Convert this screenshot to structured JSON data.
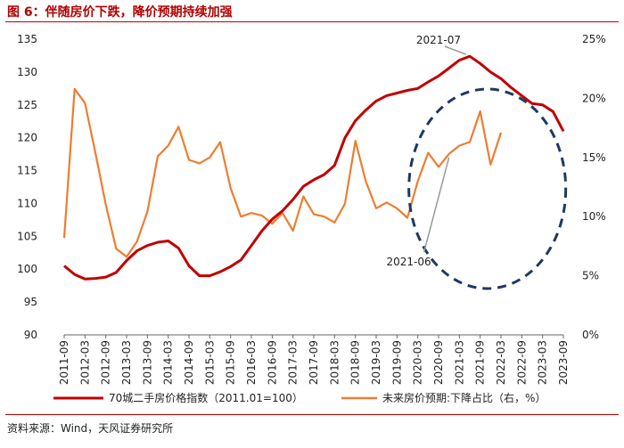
{
  "header": {
    "title": "图 6：伴随房价下跌，降价预期持续加强"
  },
  "footer": {
    "source": "资料来源：Wind，天风证券研究所"
  },
  "chart_data": {
    "type": "line",
    "title": "图 6：伴随房价下跌，降价预期持续加强",
    "x_ticks": [
      "2011-09",
      "2012-03",
      "2012-09",
      "2013-03",
      "2013-09",
      "2014-03",
      "2014-09",
      "2015-03",
      "2015-09",
      "2016-03",
      "2016-09",
      "2017-03",
      "2017-09",
      "2018-03",
      "2018-09",
      "2019-03",
      "2019-09",
      "2020-03",
      "2020-09",
      "2021-03",
      "2021-09",
      "2022-03",
      "2022-09",
      "2023-03",
      "2023-09"
    ],
    "y_left": {
      "ylim": [
        90,
        135
      ],
      "ticks": [
        "90",
        "95",
        "100",
        "105",
        "110",
        "115",
        "120",
        "125",
        "130",
        "135"
      ]
    },
    "y_right": {
      "ylim": [
        0,
        25
      ],
      "ticks": [
        "0%",
        "5%",
        "10%",
        "15%",
        "20%",
        "25%"
      ]
    },
    "legend_position": "bottom",
    "grid": false,
    "series": [
      {
        "name": "70城二手房价格指数（2011.01=100）",
        "axis": "left",
        "color": "#c00000",
        "points": [
          [
            "2011-09",
            100.5
          ],
          [
            "2011-12",
            99.2
          ],
          [
            "2012-03",
            98.5
          ],
          [
            "2012-06",
            98.6
          ],
          [
            "2012-09",
            98.8
          ],
          [
            "2012-12",
            99.5
          ],
          [
            "2013-03",
            101.3
          ],
          [
            "2013-06",
            102.8
          ],
          [
            "2013-09",
            103.6
          ],
          [
            "2013-12",
            104.1
          ],
          [
            "2014-03",
            104.3
          ],
          [
            "2014-06",
            103.2
          ],
          [
            "2014-09",
            100.5
          ],
          [
            "2014-12",
            99.0
          ],
          [
            "2015-03",
            99.0
          ],
          [
            "2015-06",
            99.6
          ],
          [
            "2015-09",
            100.4
          ],
          [
            "2015-12",
            101.4
          ],
          [
            "2016-03",
            103.6
          ],
          [
            "2016-06",
            105.8
          ],
          [
            "2016-09",
            107.6
          ],
          [
            "2016-12",
            108.9
          ],
          [
            "2017-03",
            110.6
          ],
          [
            "2017-06",
            112.6
          ],
          [
            "2017-09",
            113.6
          ],
          [
            "2017-12",
            114.4
          ],
          [
            "2018-03",
            115.8
          ],
          [
            "2018-06",
            120.0
          ],
          [
            "2018-09",
            122.6
          ],
          [
            "2018-12",
            124.2
          ],
          [
            "2019-03",
            125.6
          ],
          [
            "2019-06",
            126.4
          ],
          [
            "2019-09",
            126.8
          ],
          [
            "2019-12",
            127.2
          ],
          [
            "2020-03",
            127.5
          ],
          [
            "2020-06",
            128.5
          ],
          [
            "2020-09",
            129.4
          ],
          [
            "2020-12",
            130.6
          ],
          [
            "2021-03",
            131.8
          ],
          [
            "2021-06",
            132.4
          ],
          [
            "2021-09",
            131.3
          ],
          [
            "2021-12",
            130.0
          ],
          [
            "2022-03",
            129.0
          ],
          [
            "2022-06",
            127.6
          ],
          [
            "2022-09",
            126.4
          ],
          [
            "2022-12",
            125.2
          ],
          [
            "2023-03",
            125.0
          ],
          [
            "2023-06",
            124.0
          ],
          [
            "2023-09",
            121.0
          ]
        ]
      },
      {
        "name": "未来房价预期:下降占比（右，%）",
        "axis": "right",
        "color": "#ed7d31",
        "points": [
          [
            "2011-09",
            8.2
          ],
          [
            "2011-12",
            20.8
          ],
          [
            "2012-03",
            19.6
          ],
          [
            "2012-06",
            15.4
          ],
          [
            "2012-09",
            11.0
          ],
          [
            "2012-12",
            7.3
          ],
          [
            "2013-03",
            6.6
          ],
          [
            "2013-06",
            7.9
          ],
          [
            "2013-09",
            10.4
          ],
          [
            "2013-12",
            15.1
          ],
          [
            "2014-03",
            16.0
          ],
          [
            "2014-06",
            17.6
          ],
          [
            "2014-09",
            14.8
          ],
          [
            "2014-12",
            14.5
          ],
          [
            "2015-03",
            15.0
          ],
          [
            "2015-06",
            16.3
          ],
          [
            "2015-09",
            12.4
          ],
          [
            "2015-12",
            10.0
          ],
          [
            "2016-03",
            10.3
          ],
          [
            "2016-06",
            10.1
          ],
          [
            "2016-09",
            9.4
          ],
          [
            "2016-12",
            10.3
          ],
          [
            "2017-03",
            8.8
          ],
          [
            "2017-06",
            11.7
          ],
          [
            "2017-09",
            10.2
          ],
          [
            "2017-12",
            10.0
          ],
          [
            "2018-03",
            9.5
          ],
          [
            "2018-06",
            11.1
          ],
          [
            "2018-09",
            16.4
          ],
          [
            "2018-12",
            13.0
          ],
          [
            "2019-03",
            10.7
          ],
          [
            "2019-06",
            11.2
          ],
          [
            "2019-09",
            10.7
          ],
          [
            "2019-12",
            9.9
          ],
          [
            "2020-03",
            13.0
          ],
          [
            "2020-06",
            15.4
          ],
          [
            "2020-09",
            14.2
          ],
          [
            "2020-12",
            15.3
          ],
          [
            "2021-03",
            16.0
          ],
          [
            "2021-06",
            16.3
          ],
          [
            "2021-09",
            18.9
          ],
          [
            "2021-12",
            14.4
          ],
          [
            "2022-03",
            17.1
          ]
        ]
      }
    ],
    "annotations": [
      {
        "text": "2021-07"
      },
      {
        "text": "2021-06"
      }
    ]
  }
}
